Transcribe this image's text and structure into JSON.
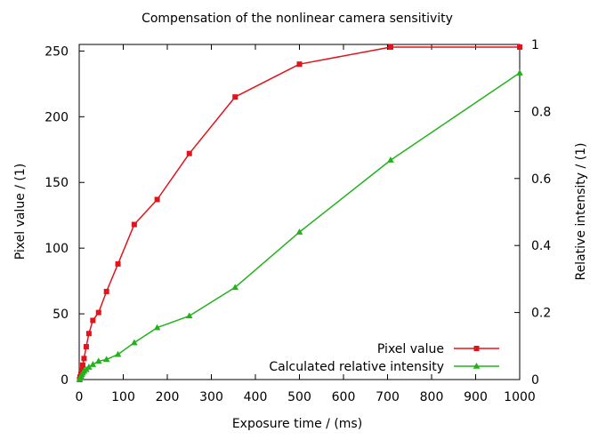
{
  "chart_data": {
    "type": "line",
    "title": "Compensation of the nonlinear camera sensitivity",
    "xlabel": "Exposure time / (ms)",
    "ylabel": "Pixel value / (1)",
    "y2label": "Relative intensity / (1)",
    "xlim": [
      0,
      1000
    ],
    "ylim": [
      0,
      255
    ],
    "y2lim": [
      0,
      1
    ],
    "xticks": [
      0,
      100,
      200,
      300,
      400,
      500,
      600,
      700,
      800,
      900,
      1000
    ],
    "yticks": [
      0,
      50,
      100,
      150,
      200,
      250
    ],
    "y2ticks": [
      0,
      0.2,
      0.4,
      0.6,
      0.8,
      1
    ],
    "grid": false,
    "legend": "bottom-right",
    "series": [
      {
        "name": "Pixel value",
        "axis": "y",
        "color": "#e0141a",
        "marker": "square",
        "x": [
          1,
          2,
          4,
          6,
          8,
          11,
          16,
          22,
          31,
          44,
          62,
          88,
          125,
          177,
          250,
          354,
          500,
          707,
          1000
        ],
        "y": [
          0,
          2,
          4,
          7,
          11,
          16,
          25,
          35,
          45,
          51,
          67,
          88,
          118,
          137,
          172,
          215,
          240,
          253,
          253
        ]
      },
      {
        "name": "Calculated relative intensity",
        "axis": "y2",
        "color": "#22b21c",
        "marker": "triangle",
        "x": [
          1,
          2,
          4,
          6,
          8,
          11,
          16,
          22,
          31,
          44,
          62,
          88,
          125,
          177,
          250,
          354,
          500,
          707,
          1000
        ],
        "y": [
          0,
          0.005,
          0.01,
          0.015,
          0.02,
          0.025,
          0.03,
          0.037,
          0.045,
          0.055,
          0.06,
          0.075,
          0.11,
          0.155,
          0.19,
          0.275,
          0.44,
          0.655,
          0.915
        ]
      }
    ]
  }
}
